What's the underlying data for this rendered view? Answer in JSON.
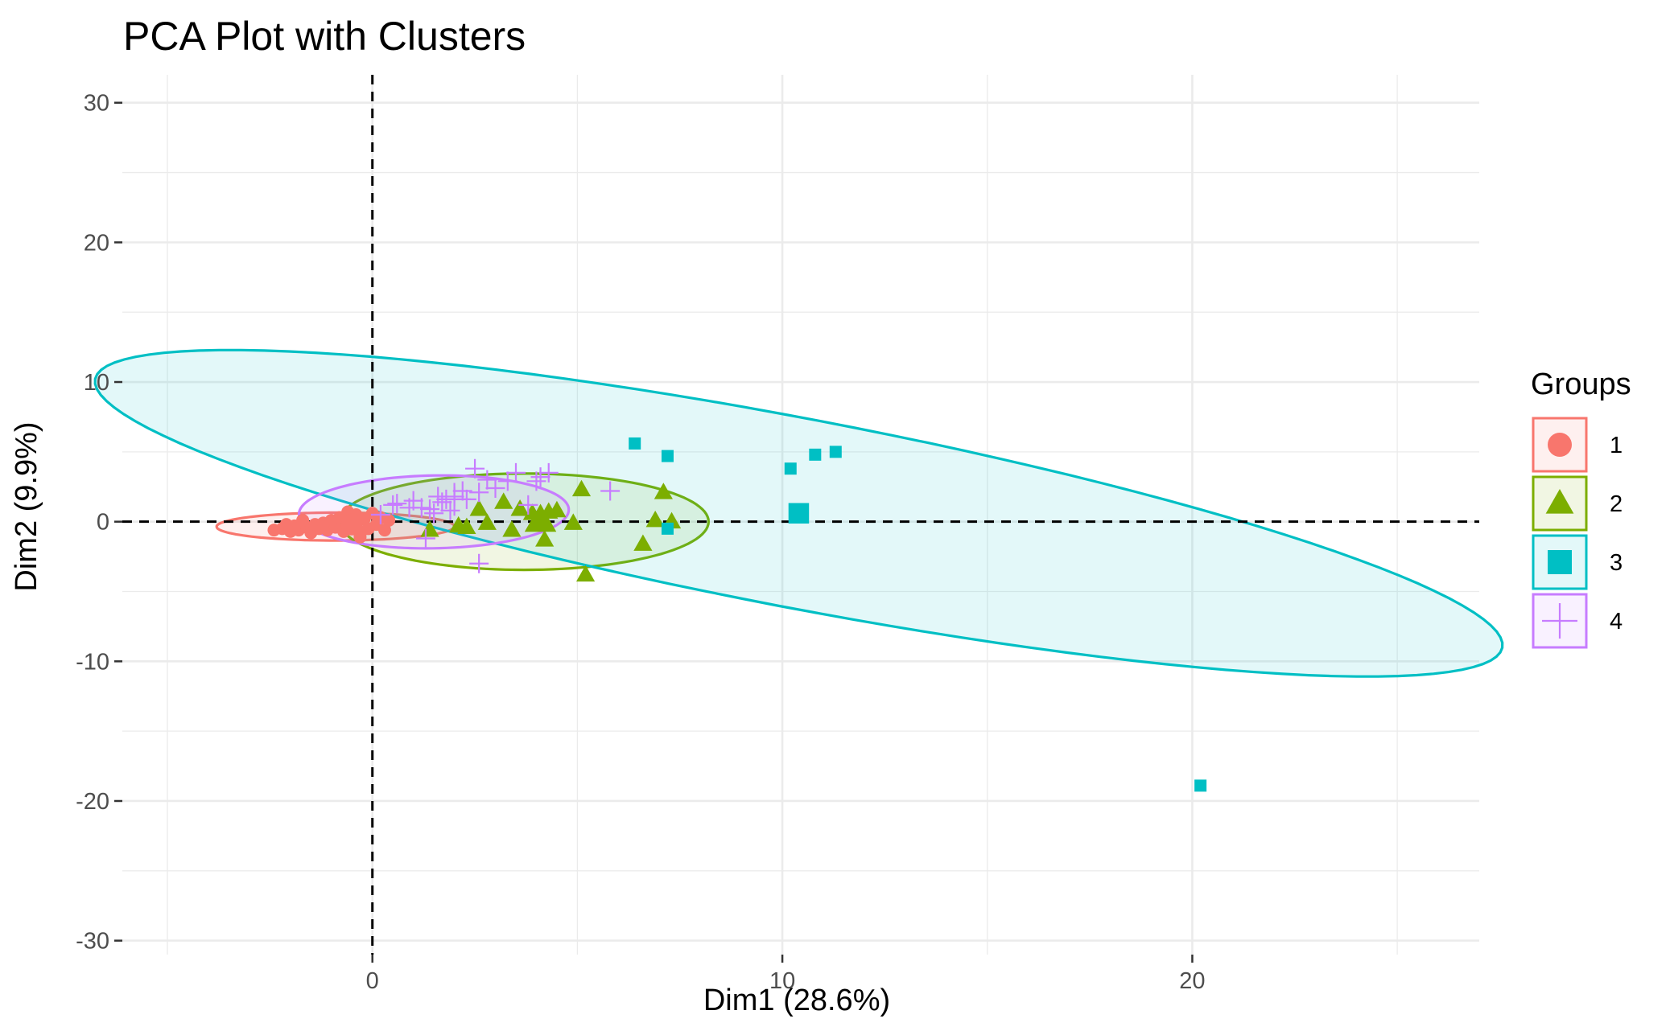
{
  "chart_data": {
    "type": "scatter",
    "title": "PCA Plot with Clusters",
    "xlabel": "Dim1 (28.6%)",
    "ylabel": "Dim2 (9.9%)",
    "xlim": [
      -6.1,
      27.0
    ],
    "ylim": [
      -31.0,
      32.0
    ],
    "x_ticks": [
      0,
      10,
      20
    ],
    "y_ticks": [
      30,
      20,
      10,
      0,
      -10,
      -20,
      -30
    ],
    "x_tick_labels": [
      "0",
      "10",
      "20"
    ],
    "y_tick_labels": [
      "30",
      "20",
      "10",
      "0",
      "-10",
      "-20",
      "-30"
    ],
    "grid": true,
    "reference_lines": {
      "x": 0,
      "y": 0,
      "style": "dashed"
    },
    "legend": {
      "title": "Groups",
      "position": "right"
    },
    "series": [
      {
        "name": "1",
        "color": "#F8766D",
        "shape": "circle",
        "points": [
          [
            -2.4,
            -0.6
          ],
          [
            -2.2,
            -0.5
          ],
          [
            -2.0,
            -0.7
          ],
          [
            -1.9,
            -0.3
          ],
          [
            -1.8,
            -0.6
          ],
          [
            -1.6,
            -0.4
          ],
          [
            -1.5,
            -0.8
          ],
          [
            -1.4,
            -0.2
          ],
          [
            -1.3,
            -0.5
          ],
          [
            -1.2,
            -0.1
          ],
          [
            -1.1,
            -0.6
          ],
          [
            -1.0,
            0.1
          ],
          [
            -0.9,
            -0.4
          ],
          [
            -0.8,
            0.3
          ],
          [
            -0.7,
            -0.7
          ],
          [
            -0.6,
            0.0
          ],
          [
            -0.5,
            -0.3
          ],
          [
            -0.4,
            0.5
          ],
          [
            -0.3,
            -0.9
          ],
          [
            -0.2,
            0.2
          ],
          [
            -0.1,
            -0.5
          ],
          [
            0.0,
            0.6
          ],
          [
            0.1,
            -0.2
          ],
          [
            0.2,
            0.3
          ],
          [
            0.3,
            -0.6
          ],
          [
            -1.7,
            0.1
          ],
          [
            -2.1,
            -0.2
          ],
          [
            -0.6,
            0.7
          ],
          [
            -0.3,
            -1.1
          ],
          [
            0.4,
            0.1
          ]
        ],
        "mean": [
          -0.5,
          -0.2
        ],
        "ellipse": {
          "cx": -0.9,
          "cy": -0.35,
          "rx": 2.9,
          "ry": 1.0,
          "angle": 0.2
        }
      },
      {
        "name": "2",
        "color": "#7CAE00",
        "shape": "triangle",
        "points": [
          [
            1.4,
            -0.6
          ],
          [
            2.1,
            -0.3
          ],
          [
            2.3,
            -0.4
          ],
          [
            2.6,
            0.9
          ],
          [
            2.8,
            -0.1
          ],
          [
            3.2,
            1.4
          ],
          [
            3.4,
            -0.6
          ],
          [
            3.6,
            0.9
          ],
          [
            3.9,
            0.6
          ],
          [
            4.0,
            -0.1
          ],
          [
            4.2,
            -1.3
          ],
          [
            4.3,
            0.7
          ],
          [
            4.5,
            0.8
          ],
          [
            4.9,
            -0.1
          ],
          [
            5.1,
            2.3
          ],
          [
            5.2,
            -3.8
          ],
          [
            6.6,
            -1.6
          ],
          [
            6.9,
            0.1
          ],
          [
            7.1,
            2.1
          ],
          [
            7.3,
            0.0
          ]
        ],
        "mean": [
          4.1,
          0.1
        ],
        "ellipse": {
          "cx": 3.7,
          "cy": 0.0,
          "rx": 4.5,
          "ry": 3.45,
          "angle": 0
        }
      },
      {
        "name": "3",
        "color": "#00BFC4",
        "shape": "square",
        "points": [
          [
            6.4,
            5.6
          ],
          [
            7.2,
            4.7
          ],
          [
            7.2,
            -0.5
          ],
          [
            10.2,
            3.8
          ],
          [
            10.8,
            4.8
          ],
          [
            11.3,
            5.0
          ],
          [
            20.2,
            -18.9
          ]
        ],
        "mean": [
          10.4,
          0.6
        ],
        "ellipse": {
          "cx": 10.4,
          "cy": 0.6,
          "rx": 19.9,
          "ry": 5.95,
          "angle": -32.0
        }
      },
      {
        "name": "4",
        "color": "#C77CFF",
        "shape": "cross",
        "points": [
          [
            0.2,
            0.5
          ],
          [
            0.5,
            1.2
          ],
          [
            0.6,
            1.3
          ],
          [
            0.9,
            1.0
          ],
          [
            1.0,
            1.5
          ],
          [
            1.2,
            1.0
          ],
          [
            1.4,
            0.9
          ],
          [
            1.5,
            0.6
          ],
          [
            1.6,
            1.8
          ],
          [
            1.7,
            1.4
          ],
          [
            1.8,
            1.6
          ],
          [
            1.9,
            0.8
          ],
          [
            2.0,
            1.8
          ],
          [
            2.2,
            2.2
          ],
          [
            2.3,
            1.6
          ],
          [
            2.5,
            3.8
          ],
          [
            2.6,
            2.1
          ],
          [
            2.8,
            3.0
          ],
          [
            3.0,
            2.4
          ],
          [
            3.3,
            2.9
          ],
          [
            3.5,
            3.5
          ],
          [
            3.8,
            1.2
          ],
          [
            4.0,
            2.9
          ],
          [
            4.3,
            3.5
          ],
          [
            1.3,
            -1.2
          ],
          [
            2.6,
            -3.0
          ],
          [
            5.8,
            2.2
          ],
          [
            4.1,
            3.2
          ]
        ],
        "mean": [
          2.0,
          1.6
        ],
        "ellipse": {
          "cx": 1.5,
          "cy": 0.7,
          "rx": 3.3,
          "ry": 2.6,
          "angle": 7
        }
      }
    ]
  }
}
